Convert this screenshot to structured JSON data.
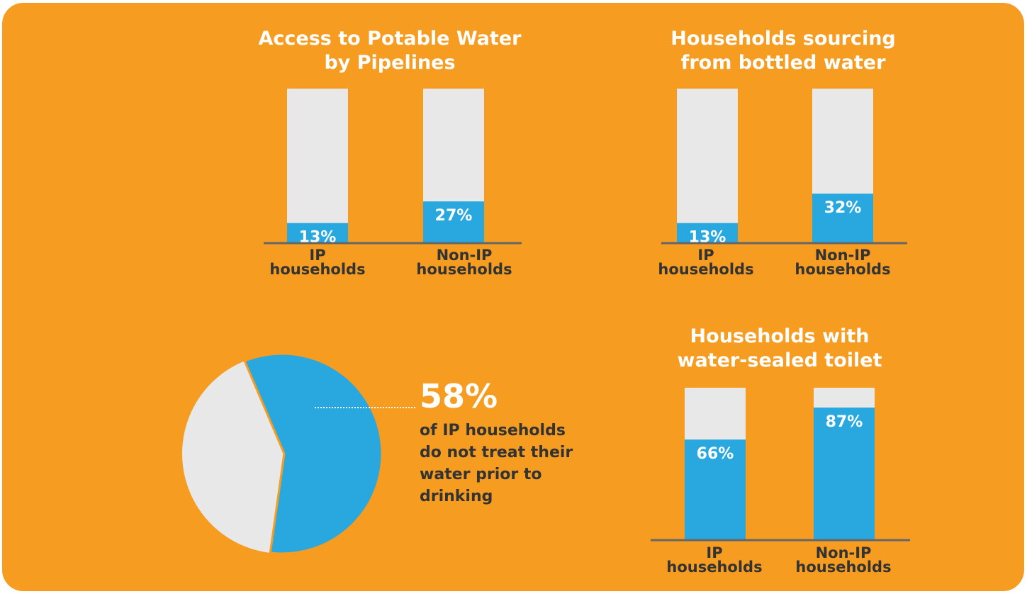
{
  "colors": {
    "background": "#f59c21",
    "bar_fill": "#29a8e0",
    "bar_track": "#e8e8e8",
    "axis": "#666666",
    "label_dark": "#333333",
    "white": "#ffffff"
  },
  "chart_data": [
    {
      "type": "bar",
      "title": "Access to Potable Water\nby Pipelines",
      "categories": [
        "IP\nhouseholds",
        "Non-IP\nhouseholds"
      ],
      "values": [
        13,
        27
      ],
      "labels": [
        "13%",
        "27%"
      ],
      "ylim": [
        0,
        100
      ]
    },
    {
      "type": "bar",
      "title": "Households sourcing\nfrom bottled water",
      "categories": [
        "IP\nhouseholds",
        "Non-IP\nhouseholds"
      ],
      "values": [
        13,
        32
      ],
      "labels": [
        "13%",
        "32%"
      ],
      "ylim": [
        0,
        100
      ]
    },
    {
      "type": "pie",
      "values": [
        58,
        42
      ],
      "highlight_label": "58%",
      "annotation": "of IP households\ndo not treat their\nwater prior to\ndrinking"
    },
    {
      "type": "bar",
      "title": "Households with\nwater-sealed toilet",
      "categories": [
        "IP\nhouseholds",
        "Non-IP\nhouseholds"
      ],
      "values": [
        66,
        87
      ],
      "labels": [
        "66%",
        "87%"
      ],
      "ylim": [
        0,
        100
      ]
    }
  ]
}
